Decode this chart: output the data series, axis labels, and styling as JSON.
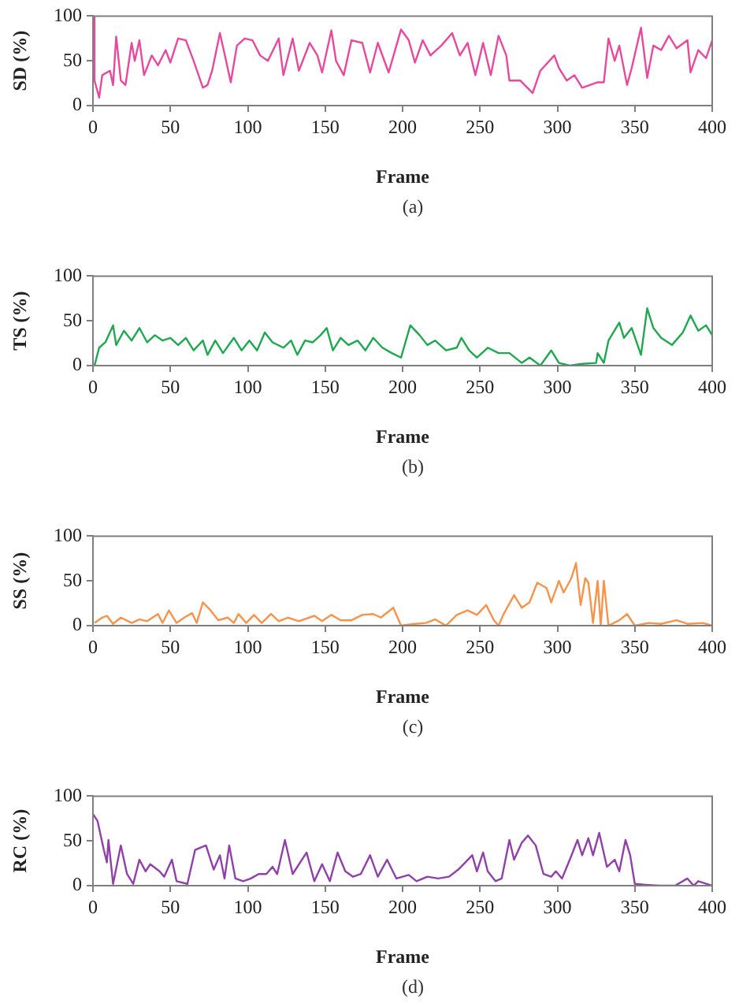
{
  "chart_data": [
    {
      "type": "line",
      "xlabel": "Frame",
      "ylabel": "SD (%)",
      "annotations": [
        "(a)"
      ],
      "xlim": [
        0,
        400
      ],
      "xticks": [
        0,
        50,
        100,
        150,
        200,
        250,
        300,
        350,
        400
      ],
      "ylim": [
        0,
        100
      ],
      "yticks": [
        0,
        50,
        100
      ],
      "marker": "none",
      "series": [
        {
          "color": "#e8489e",
          "x": [
            0,
            1,
            4,
            6,
            11,
            13,
            15,
            18,
            21,
            25,
            27,
            30,
            33,
            38,
            42,
            47,
            50,
            55,
            60,
            65,
            71,
            74,
            77,
            82,
            86,
            89,
            93,
            98,
            103,
            108,
            113,
            120,
            123,
            129,
            133,
            140,
            145,
            148,
            154,
            157,
            162,
            167,
            174,
            179,
            184,
            191,
            199,
            204,
            208,
            213,
            218,
            225,
            232,
            237,
            242,
            247,
            252,
            257,
            262,
            267,
            269,
            276,
            284,
            289,
            298,
            301,
            306,
            311,
            316,
            321,
            326,
            330,
            333,
            337,
            340,
            345,
            348,
            354,
            358,
            362,
            367,
            372,
            377,
            384,
            386,
            391,
            396,
            400
          ],
          "values": [
            100,
            28,
            9,
            34,
            39,
            23,
            77,
            28,
            23,
            70,
            50,
            73,
            34,
            56,
            45,
            62,
            48,
            75,
            73,
            50,
            20,
            23,
            39,
            81,
            50,
            26,
            67,
            75,
            73,
            56,
            50,
            75,
            34,
            75,
            39,
            70,
            56,
            37,
            84,
            50,
            34,
            73,
            70,
            37,
            70,
            37,
            85,
            73,
            48,
            73,
            56,
            67,
            81,
            56,
            70,
            34,
            70,
            34,
            78,
            56,
            28,
            28,
            14,
            39,
            56,
            42,
            28,
            34,
            20,
            23,
            26,
            26,
            75,
            50,
            67,
            23,
            42,
            87,
            31,
            67,
            62,
            78,
            64,
            73,
            37,
            62,
            53,
            73
          ]
        }
      ]
    },
    {
      "type": "line",
      "xlabel": "Frame",
      "ylabel": "TS (%)",
      "annotations": [
        "(b)"
      ],
      "xlim": [
        0,
        400
      ],
      "xticks": [
        0,
        50,
        100,
        150,
        200,
        250,
        300,
        350,
        400
      ],
      "ylim": [
        0,
        100
      ],
      "yticks": [
        0,
        50,
        100
      ],
      "marker": "none",
      "series": [
        {
          "color": "#1fa84f",
          "x": [
            1,
            4,
            8,
            13,
            15,
            20,
            25,
            30,
            35,
            40,
            45,
            50,
            55,
            60,
            65,
            71,
            74,
            79,
            84,
            91,
            96,
            101,
            106,
            111,
            116,
            123,
            128,
            132,
            137,
            142,
            147,
            151,
            155,
            160,
            165,
            171,
            176,
            181,
            187,
            193,
            199,
            205,
            211,
            216,
            221,
            228,
            235,
            238,
            243,
            248,
            255,
            262,
            269,
            277,
            282,
            289,
            296,
            301,
            308,
            316,
            325,
            326,
            330,
            333,
            340,
            343,
            348,
            354,
            358,
            362,
            367,
            374,
            381,
            386,
            391,
            396,
            400
          ],
          "values": [
            0,
            20,
            26,
            45,
            23,
            39,
            28,
            42,
            26,
            34,
            28,
            31,
            23,
            31,
            17,
            28,
            12,
            28,
            14,
            31,
            17,
            28,
            17,
            37,
            26,
            20,
            28,
            12,
            28,
            26,
            34,
            42,
            17,
            31,
            23,
            28,
            17,
            31,
            20,
            14,
            9,
            45,
            34,
            23,
            28,
            17,
            20,
            31,
            17,
            9,
            20,
            14,
            14,
            3,
            9,
            0,
            17,
            3,
            0,
            2,
            3,
            14,
            3,
            28,
            48,
            31,
            42,
            12,
            64,
            42,
            31,
            23,
            37,
            56,
            39,
            45,
            34
          ]
        }
      ]
    },
    {
      "type": "line",
      "xlabel": "Frame",
      "ylabel": "SS (%)",
      "annotations": [
        "(c)"
      ],
      "xlim": [
        0,
        400
      ],
      "xticks": [
        0,
        50,
        100,
        150,
        200,
        250,
        300,
        350,
        400
      ],
      "ylim": [
        0,
        100
      ],
      "yticks": [
        0,
        50,
        100
      ],
      "marker": "none",
      "series": [
        {
          "color": "#f7934a",
          "x": [
            1,
            6,
            9,
            13,
            18,
            25,
            30,
            35,
            42,
            45,
            49,
            54,
            59,
            64,
            67,
            71,
            76,
            81,
            87,
            91,
            94,
            99,
            104,
            109,
            115,
            120,
            126,
            133,
            143,
            148,
            154,
            160,
            167,
            174,
            181,
            186,
            194,
            199,
            208,
            215,
            221,
            228,
            235,
            242,
            248,
            254,
            259,
            262,
            265,
            272,
            277,
            282,
            287,
            293,
            296,
            301,
            304,
            309,
            312,
            315,
            318,
            320,
            323,
            326,
            328,
            330,
            333,
            340,
            345,
            350,
            359,
            367,
            377,
            384,
            394,
            400
          ],
          "values": [
            3,
            9,
            11,
            2,
            9,
            3,
            7,
            5,
            13,
            3,
            17,
            3,
            9,
            14,
            3,
            26,
            17,
            6,
            9,
            3,
            13,
            3,
            12,
            3,
            13,
            5,
            9,
            5,
            11,
            5,
            12,
            6,
            6,
            12,
            13,
            9,
            20,
            0,
            2,
            3,
            7,
            0,
            12,
            17,
            12,
            23,
            6,
            0,
            12,
            34,
            20,
            26,
            48,
            42,
            26,
            50,
            37,
            53,
            70,
            23,
            53,
            48,
            3,
            50,
            0,
            50,
            0,
            6,
            13,
            0,
            3,
            2,
            6,
            2,
            3,
            0
          ]
        }
      ]
    },
    {
      "type": "line",
      "xlabel": "Frame",
      "ylabel": "RC (%)",
      "annotations": [
        "(d)"
      ],
      "xlim": [
        0,
        400
      ],
      "xticks": [
        0,
        50,
        100,
        150,
        200,
        250,
        300,
        350,
        400
      ],
      "ylim": [
        0,
        100
      ],
      "yticks": [
        0,
        50,
        100
      ],
      "marker": "none",
      "series": [
        {
          "color": "#9040a8",
          "x": [
            0,
            3,
            7,
            9,
            10,
            13,
            18,
            22,
            26,
            30,
            34,
            37,
            43,
            46,
            51,
            54,
            61,
            66,
            73,
            78,
            82,
            85,
            88,
            92,
            97,
            102,
            107,
            112,
            116,
            119,
            124,
            129,
            138,
            143,
            148,
            153,
            158,
            163,
            168,
            173,
            179,
            184,
            190,
            196,
            204,
            209,
            216,
            223,
            230,
            236,
            245,
            248,
            252,
            255,
            260,
            264,
            269,
            272,
            277,
            281,
            286,
            291,
            296,
            299,
            303,
            308,
            313,
            316,
            320,
            323,
            327,
            332,
            337,
            340,
            344,
            347,
            350,
            357,
            366,
            376,
            384,
            388,
            391,
            400
          ],
          "values": [
            80,
            72,
            40,
            26,
            51,
            2,
            45,
            13,
            2,
            29,
            16,
            24,
            16,
            10,
            29,
            5,
            2,
            40,
            45,
            18,
            34,
            8,
            45,
            8,
            5,
            8,
            13,
            13,
            21,
            13,
            51,
            13,
            37,
            5,
            24,
            5,
            37,
            16,
            10,
            13,
            34,
            10,
            29,
            8,
            12,
            5,
            10,
            8,
            10,
            18,
            34,
            16,
            37,
            16,
            5,
            8,
            51,
            29,
            48,
            56,
            45,
            13,
            10,
            16,
            8,
            29,
            51,
            34,
            53,
            34,
            59,
            21,
            29,
            16,
            51,
            34,
            2,
            1,
            0,
            0,
            8,
            0,
            5,
            0
          ]
        }
      ]
    }
  ]
}
